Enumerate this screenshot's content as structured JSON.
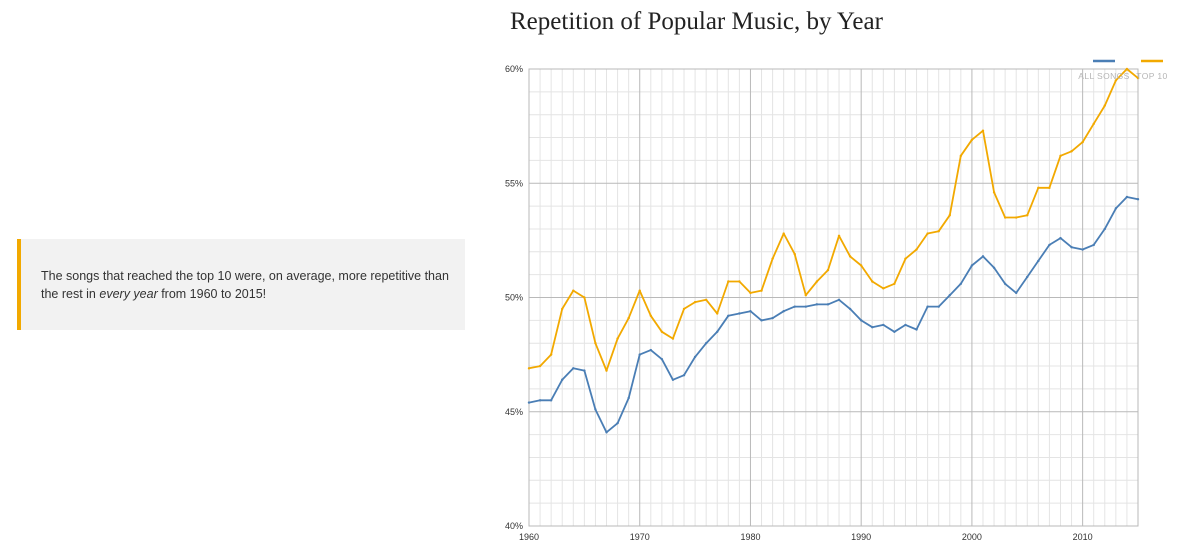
{
  "note": {
    "text_before": "The songs that reached the top 10 were, on average, more repetitive than the rest in ",
    "emphasis": "every year",
    "text_after": " from 1960 to 2015!",
    "accent_color": "#f2a900",
    "background_color": "#f2f2f2"
  },
  "chart_data": {
    "type": "line",
    "title": "Repetition of Popular Music, by Year",
    "xlabel": "",
    "ylabel": "",
    "xlim": [
      1960,
      2015
    ],
    "ylim": [
      40,
      60
    ],
    "x_ticks": [
      {
        "value": 1960,
        "label": "1960"
      },
      {
        "value": 1970,
        "label": "1970"
      },
      {
        "value": 1980,
        "label": "1980"
      },
      {
        "value": 1990,
        "label": "1990"
      },
      {
        "value": 2000,
        "label": "2000"
      },
      {
        "value": 2010,
        "label": "2010"
      }
    ],
    "y_ticks": [
      {
        "value": 40,
        "label": "40%"
      },
      {
        "value": 45,
        "label": "45%"
      },
      {
        "value": 50,
        "label": "50%"
      },
      {
        "value": 55,
        "label": "55%"
      },
      {
        "value": 60,
        "label": "60%"
      }
    ],
    "grid": true,
    "legend_position": "top-right",
    "x": [
      1960,
      1961,
      1962,
      1963,
      1964,
      1965,
      1966,
      1967,
      1968,
      1969,
      1970,
      1971,
      1972,
      1973,
      1974,
      1975,
      1976,
      1977,
      1978,
      1979,
      1980,
      1981,
      1982,
      1983,
      1984,
      1985,
      1986,
      1987,
      1988,
      1989,
      1990,
      1991,
      1992,
      1993,
      1994,
      1995,
      1996,
      1997,
      1998,
      1999,
      2000,
      2001,
      2002,
      2003,
      2004,
      2005,
      2006,
      2007,
      2008,
      2009,
      2010,
      2011,
      2012,
      2013,
      2014,
      2015
    ],
    "series": [
      {
        "name": "ALL SONGS",
        "color": "#4a7eb5",
        "values": [
          45.4,
          45.5,
          45.5,
          46.4,
          46.9,
          46.8,
          45.1,
          44.1,
          44.5,
          45.6,
          47.5,
          47.7,
          47.3,
          46.4,
          46.6,
          47.4,
          48.0,
          48.5,
          49.2,
          49.3,
          49.4,
          49.0,
          49.1,
          49.4,
          49.6,
          49.6,
          49.7,
          49.7,
          49.9,
          49.5,
          49.0,
          48.7,
          48.8,
          48.5,
          48.8,
          48.6,
          49.6,
          49.6,
          50.1,
          50.6,
          51.4,
          51.8,
          51.3,
          50.6,
          50.2,
          50.9,
          51.6,
          52.3,
          52.6,
          52.2,
          52.1,
          52.3,
          53.0,
          53.9,
          54.4,
          54.3
        ]
      },
      {
        "name": "TOP 10",
        "color": "#f2a900",
        "values": [
          46.9,
          47.0,
          47.5,
          49.5,
          50.3,
          50.0,
          48.0,
          46.8,
          48.2,
          49.1,
          50.3,
          49.2,
          48.5,
          48.2,
          49.5,
          49.8,
          49.9,
          49.3,
          50.7,
          50.7,
          50.2,
          50.3,
          51.7,
          52.8,
          51.9,
          50.1,
          50.7,
          51.2,
          52.7,
          51.8,
          51.4,
          50.7,
          50.4,
          50.6,
          51.7,
          52.1,
          52.8,
          52.9,
          53.6,
          56.2,
          56.9,
          57.3,
          54.6,
          53.5,
          53.5,
          53.6,
          54.8,
          54.8,
          56.2,
          56.4,
          56.8,
          57.6,
          58.4,
          59.5,
          60.0,
          59.6
        ]
      }
    ]
  }
}
